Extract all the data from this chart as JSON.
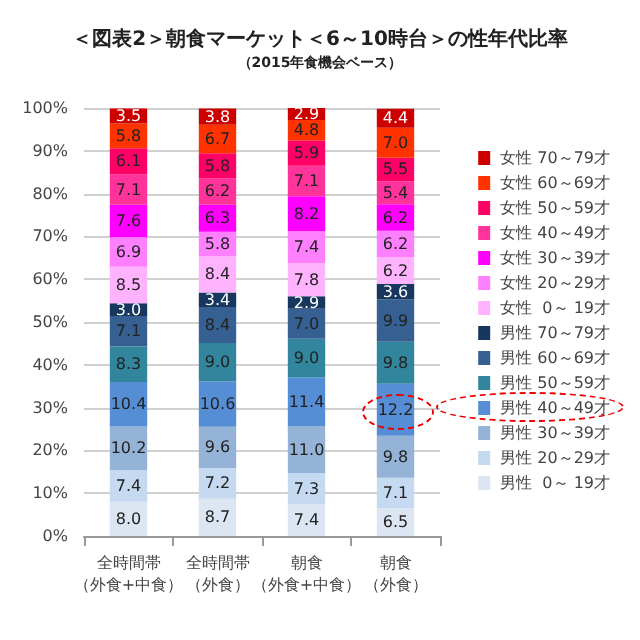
{
  "chart_data": {
    "type": "bar",
    "stacked": true,
    "title": "＜図表2＞朝食マーケット＜6～10時台＞の性年代比率",
    "subtitle": "（2015年食機会ベース）",
    "categories": [
      "全時間帯（外食+中食）",
      "全時間帯（外食）",
      "朝食（外食+中食）",
      "朝食（外食）"
    ],
    "ylim": [
      0,
      100
    ],
    "yticks": [
      {
        "value": 0,
        "label": "0%"
      },
      {
        "value": 10,
        "label": "10%"
      },
      {
        "value": 20,
        "label": "20%"
      },
      {
        "value": 30,
        "label": "30%"
      },
      {
        "value": 40,
        "label": "40%"
      },
      {
        "value": 50,
        "label": "50%"
      },
      {
        "value": 60,
        "label": "60%"
      },
      {
        "value": 70,
        "label": "70%"
      },
      {
        "value": 80,
        "label": "80%"
      },
      {
        "value": 90,
        "label": "90%"
      },
      {
        "value": 100,
        "label": "100%"
      }
    ],
    "grid": "y",
    "legend": "right",
    "series": [
      {
        "name": "男性  0～ 19才",
        "color": "#dce6f2",
        "values": [
          8.0,
          8.7,
          7.4,
          6.5
        ],
        "value_labels": [
          "8.0",
          "8.7",
          "7.4",
          "6.5"
        ]
      },
      {
        "name": "男性 20～29才",
        "color": "#c5d9f1",
        "values": [
          7.4,
          7.2,
          7.3,
          7.1
        ],
        "value_labels": [
          "7.4",
          "7.2",
          "7.3",
          "7.1"
        ]
      },
      {
        "name": "男性 30～39才",
        "color": "#95b3d7",
        "values": [
          10.2,
          9.6,
          11.0,
          9.8
        ],
        "value_labels": [
          "10.2",
          "9.6",
          "11.0",
          "9.8"
        ]
      },
      {
        "name": "男性 40～49才",
        "color": "#558ed5",
        "values": [
          10.4,
          10.6,
          11.4,
          12.2
        ],
        "value_labels": [
          "10.4",
          "10.6",
          "11.4",
          "12.2"
        ]
      },
      {
        "name": "男性 50～59才",
        "color": "#31859c",
        "values": [
          8.3,
          9.0,
          9.0,
          9.8
        ],
        "value_labels": [
          "8.3",
          "9.0",
          "9.0",
          "9.8"
        ]
      },
      {
        "name": "男性 60～69才",
        "color": "#366092",
        "values": [
          7.1,
          8.4,
          7.0,
          9.9
        ],
        "value_labels": [
          "7.1",
          "8.4",
          "7.0",
          "9.9"
        ]
      },
      {
        "name": "男性 70～79才",
        "color": "#17375e",
        "values": [
          3.0,
          3.4,
          2.9,
          3.6
        ],
        "value_labels": [
          "3.0",
          "3.4",
          "2.9",
          "3.6"
        ]
      },
      {
        "name": "女性  0～ 19才",
        "color": "#ffb3ff",
        "values": [
          8.5,
          8.4,
          7.8,
          6.2
        ],
        "value_labels": [
          "8.5",
          "8.4",
          "7.8",
          "6.2"
        ]
      },
      {
        "name": "女性 20～29才",
        "color": "#ff80ff",
        "values": [
          6.9,
          5.8,
          7.4,
          6.2
        ],
        "value_labels": [
          "6.9",
          "5.8",
          "7.4",
          "6.2"
        ]
      },
      {
        "name": "女性 30～39才",
        "color": "#ff00ff",
        "values": [
          7.6,
          6.3,
          8.2,
          6.2
        ],
        "value_labels": [
          "7.6",
          "6.3",
          "8.2",
          "6.2"
        ]
      },
      {
        "name": "女性 40～49才",
        "color": "#ff3399",
        "values": [
          7.1,
          6.2,
          7.1,
          5.4
        ],
        "value_labels": [
          "7.1",
          "6.2",
          "7.1",
          "5.4"
        ]
      },
      {
        "name": "女性 50～59才",
        "color": "#ff0066",
        "values": [
          6.1,
          5.8,
          5.9,
          5.5
        ],
        "value_labels": [
          "6.1",
          "5.8",
          "5.9",
          "5.5"
        ]
      },
      {
        "name": "女性 60～69才",
        "color": "#ff3300",
        "values": [
          5.8,
          6.7,
          4.8,
          7.0
        ],
        "value_labels": [
          "5.8",
          "6.7",
          "4.8",
          "7.0"
        ]
      },
      {
        "name": "女性 70～79才",
        "color": "#cc0000",
        "values": [
          3.5,
          3.8,
          2.9,
          4.4
        ],
        "value_labels": [
          "3.5",
          "3.8",
          "2.9",
          "4.4"
        ]
      }
    ]
  }
}
